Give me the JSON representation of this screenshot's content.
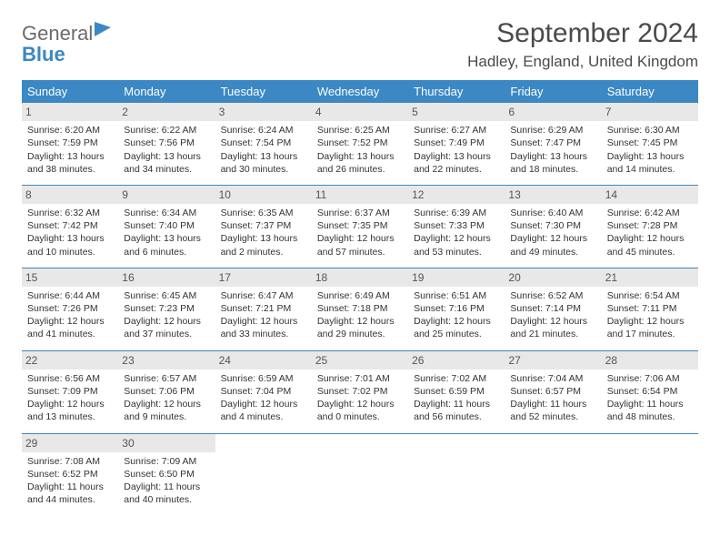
{
  "brand": {
    "part1": "General",
    "part2": "Blue"
  },
  "title": "September 2024",
  "location": "Hadley, England, United Kingdom",
  "colors": {
    "header_bg": "#3b88c4",
    "header_text": "#ffffff",
    "daynum_bg": "#e8e8e8",
    "border": "#3b88c4",
    "text": "#333333",
    "logo_gray": "#6b6b6b",
    "logo_blue": "#3b88c4"
  },
  "weekdays": [
    "Sunday",
    "Monday",
    "Tuesday",
    "Wednesday",
    "Thursday",
    "Friday",
    "Saturday"
  ],
  "days": [
    {
      "n": 1,
      "sunrise": "6:20 AM",
      "sunset": "7:59 PM",
      "daylight": "13 hours and 38 minutes."
    },
    {
      "n": 2,
      "sunrise": "6:22 AM",
      "sunset": "7:56 PM",
      "daylight": "13 hours and 34 minutes."
    },
    {
      "n": 3,
      "sunrise": "6:24 AM",
      "sunset": "7:54 PM",
      "daylight": "13 hours and 30 minutes."
    },
    {
      "n": 4,
      "sunrise": "6:25 AM",
      "sunset": "7:52 PM",
      "daylight": "13 hours and 26 minutes."
    },
    {
      "n": 5,
      "sunrise": "6:27 AM",
      "sunset": "7:49 PM",
      "daylight": "13 hours and 22 minutes."
    },
    {
      "n": 6,
      "sunrise": "6:29 AM",
      "sunset": "7:47 PM",
      "daylight": "13 hours and 18 minutes."
    },
    {
      "n": 7,
      "sunrise": "6:30 AM",
      "sunset": "7:45 PM",
      "daylight": "13 hours and 14 minutes."
    },
    {
      "n": 8,
      "sunrise": "6:32 AM",
      "sunset": "7:42 PM",
      "daylight": "13 hours and 10 minutes."
    },
    {
      "n": 9,
      "sunrise": "6:34 AM",
      "sunset": "7:40 PM",
      "daylight": "13 hours and 6 minutes."
    },
    {
      "n": 10,
      "sunrise": "6:35 AM",
      "sunset": "7:37 PM",
      "daylight": "13 hours and 2 minutes."
    },
    {
      "n": 11,
      "sunrise": "6:37 AM",
      "sunset": "7:35 PM",
      "daylight": "12 hours and 57 minutes."
    },
    {
      "n": 12,
      "sunrise": "6:39 AM",
      "sunset": "7:33 PM",
      "daylight": "12 hours and 53 minutes."
    },
    {
      "n": 13,
      "sunrise": "6:40 AM",
      "sunset": "7:30 PM",
      "daylight": "12 hours and 49 minutes."
    },
    {
      "n": 14,
      "sunrise": "6:42 AM",
      "sunset": "7:28 PM",
      "daylight": "12 hours and 45 minutes."
    },
    {
      "n": 15,
      "sunrise": "6:44 AM",
      "sunset": "7:26 PM",
      "daylight": "12 hours and 41 minutes."
    },
    {
      "n": 16,
      "sunrise": "6:45 AM",
      "sunset": "7:23 PM",
      "daylight": "12 hours and 37 minutes."
    },
    {
      "n": 17,
      "sunrise": "6:47 AM",
      "sunset": "7:21 PM",
      "daylight": "12 hours and 33 minutes."
    },
    {
      "n": 18,
      "sunrise": "6:49 AM",
      "sunset": "7:18 PM",
      "daylight": "12 hours and 29 minutes."
    },
    {
      "n": 19,
      "sunrise": "6:51 AM",
      "sunset": "7:16 PM",
      "daylight": "12 hours and 25 minutes."
    },
    {
      "n": 20,
      "sunrise": "6:52 AM",
      "sunset": "7:14 PM",
      "daylight": "12 hours and 21 minutes."
    },
    {
      "n": 21,
      "sunrise": "6:54 AM",
      "sunset": "7:11 PM",
      "daylight": "12 hours and 17 minutes."
    },
    {
      "n": 22,
      "sunrise": "6:56 AM",
      "sunset": "7:09 PM",
      "daylight": "12 hours and 13 minutes."
    },
    {
      "n": 23,
      "sunrise": "6:57 AM",
      "sunset": "7:06 PM",
      "daylight": "12 hours and 9 minutes."
    },
    {
      "n": 24,
      "sunrise": "6:59 AM",
      "sunset": "7:04 PM",
      "daylight": "12 hours and 4 minutes."
    },
    {
      "n": 25,
      "sunrise": "7:01 AM",
      "sunset": "7:02 PM",
      "daylight": "12 hours and 0 minutes."
    },
    {
      "n": 26,
      "sunrise": "7:02 AM",
      "sunset": "6:59 PM",
      "daylight": "11 hours and 56 minutes."
    },
    {
      "n": 27,
      "sunrise": "7:04 AM",
      "sunset": "6:57 PM",
      "daylight": "11 hours and 52 minutes."
    },
    {
      "n": 28,
      "sunrise": "7:06 AM",
      "sunset": "6:54 PM",
      "daylight": "11 hours and 48 minutes."
    },
    {
      "n": 29,
      "sunrise": "7:08 AM",
      "sunset": "6:52 PM",
      "daylight": "11 hours and 44 minutes."
    },
    {
      "n": 30,
      "sunrise": "7:09 AM",
      "sunset": "6:50 PM",
      "daylight": "11 hours and 40 minutes."
    }
  ],
  "labels": {
    "sunrise": "Sunrise:",
    "sunset": "Sunset:",
    "daylight": "Daylight:"
  },
  "layout": {
    "start_weekday": 0,
    "columns": 7
  }
}
